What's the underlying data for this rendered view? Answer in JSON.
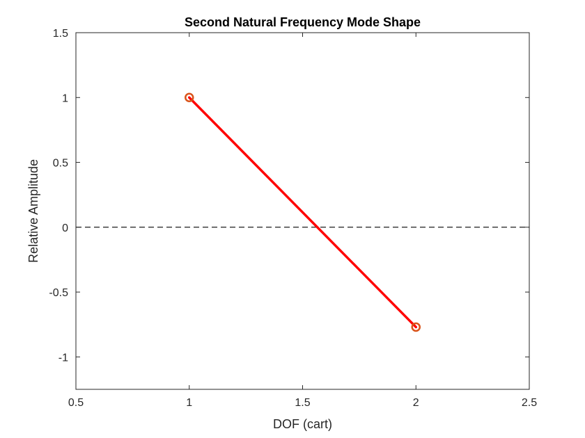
{
  "chart_data": {
    "type": "line",
    "title": "Second Natural Frequency Mode Shape",
    "xlabel": "DOF (cart)",
    "ylabel": "Relative Amplitude",
    "xlim": [
      0.5,
      2.5
    ],
    "ylim": [
      -1.25,
      1.5
    ],
    "xticks": [
      0.5,
      1,
      1.5,
      2,
      2.5
    ],
    "xtick_labels": [
      "0.5",
      "1",
      "1.5",
      "2",
      "2.5"
    ],
    "yticks": [
      -1,
      -0.5,
      0,
      0.5,
      1,
      1.5
    ],
    "ytick_labels": [
      "-1",
      "-0.5",
      "0",
      "0.5",
      "1",
      "1.5"
    ],
    "grid": false,
    "series": [
      {
        "x": [
          1,
          2
        ],
        "y": [
          1,
          -0.77
        ],
        "line_color": "#ff0000",
        "marker": "circle",
        "marker_color": "#d95319"
      }
    ],
    "reference_lines": [
      {
        "y": 0,
        "style": "dashed",
        "color": "#000000"
      }
    ]
  }
}
